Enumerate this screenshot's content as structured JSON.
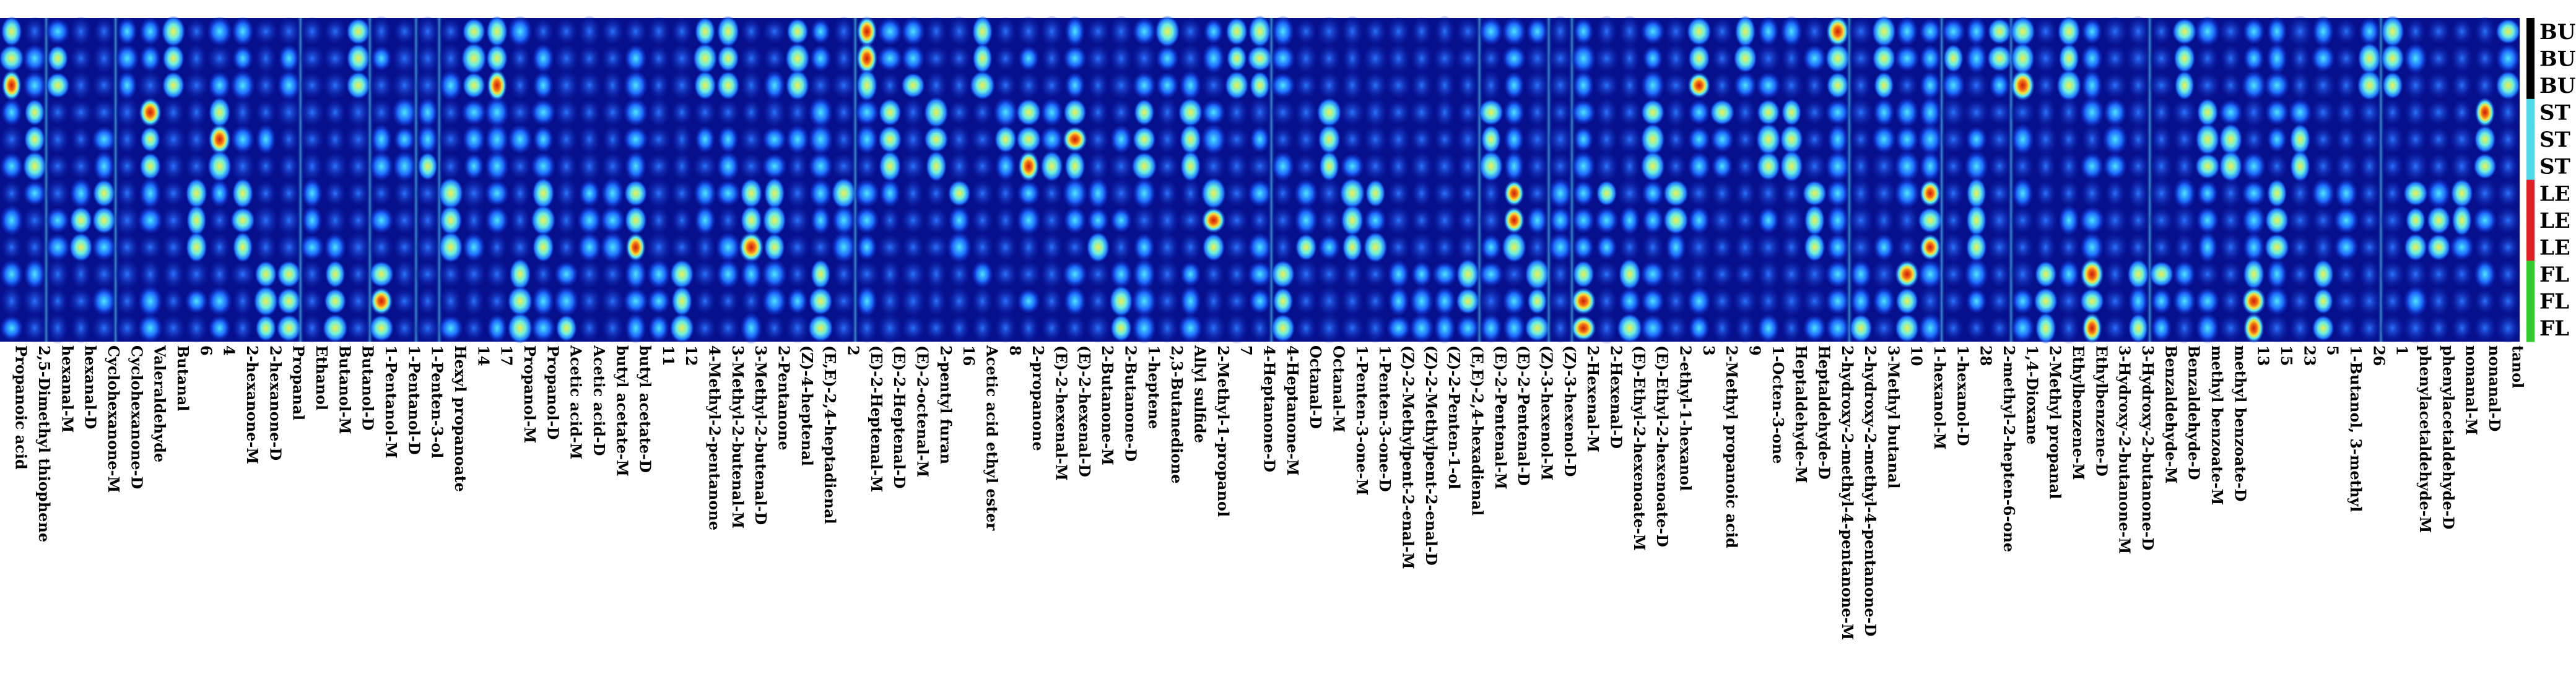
{
  "chart_data": {
    "type": "heatmap",
    "title": "",
    "xlabel": "",
    "ylabel": "",
    "legend": "none",
    "grid": false,
    "colormap": "jet",
    "sample_rows": [
      "BU",
      "BU",
      "BU",
      "ST",
      "ST",
      "ST",
      "LE",
      "LE",
      "LE",
      "FL",
      "FL",
      "FL"
    ],
    "group_colors": {
      "BU": "#000000",
      "ST": "#4fd9ea",
      "LE": "#e01e25",
      "FL": "#33cc2e"
    },
    "compounds": [
      "Propanoic acid",
      "2,5-Dimethyl thiophene",
      "hexanal-M",
      "hexanal-D",
      "Cyclohexanone-M",
      "Cyclohexanone-D",
      "Valeraldehyde",
      "Butanal",
      "6",
      "4",
      "2-hexanone-M",
      "2-hexanone-D",
      "Propanal",
      "Ethanol",
      "Butanol-M",
      "Butanol-D",
      "1-Pentanol-M",
      "1-Pentanol-D",
      "1-Penten-3-ol",
      "Hexyl propanoate",
      "14",
      "17",
      "Propanol-M",
      "Propanol-D",
      "Acetic acid-M",
      "Acetic acid-D",
      "butyl acetate-M",
      "butyl acetate-D",
      "11",
      "12",
      "4-Methyl-2-pentanone",
      "3-Methyl-2-butenal-M",
      "3-Methyl-2-butenal-D",
      "2-Pentanone",
      "(Z)-4-heptenal",
      "(E,E)-2,4-heptadienal",
      "2",
      "(E)-2-Heptenal-M",
      "(E)-2-Heptenal-D",
      "(E)-2-octenal-M",
      "2-pentyl furan",
      "16",
      "Acetic acid ethyl ester",
      "8",
      "2-propanone",
      "(E)-2-hexenal-M",
      "(E)-2-hexenal-D",
      "2-Butanone-M",
      "2-Butanone-D",
      "1-heptene",
      "2,3-Butanedione",
      "Allyl sulfide",
      "2-Methyl-1-propanol",
      "7",
      "4-Heptanone-D",
      "4-Heptanone-M",
      "Octanal-D",
      "Octanal-M",
      "1-Penten-3-one-M",
      "1-Penten-3-one-D",
      "(Z)-2-Methylpent-2-enal-M",
      "(Z)-2-Methylpent-2-enal-D",
      "(Z)-2-Penten-1-ol",
      "(E,E)-2,4-hexadienal",
      "(E)-2-Pentenal-M",
      "(E)-2-Pentenal-D",
      "(Z)-3-hexenol-M",
      "(Z)-3-hexenol-D",
      "2-Hexenal-M",
      "2-Hexenal-D",
      "(E)-Ethyl-2-hexenoate-M",
      "(E)-Ethyl-2-hexenoate-D",
      "2-ethyl-1-hexanol",
      "3",
      "2-Methyl propanoic acid",
      "9",
      "1-Octen-3-one",
      "Heptaldehyde-M",
      "Heptaldehyde-D",
      "2-hydroxy-2-methyl-4-pentanone-M",
      "2-hydroxy-2-methyl-4-pentanone-D",
      "3-Methyl butanal",
      "10",
      "1-hexanol-M",
      "1-hexanol-D",
      "28",
      "2-methyl-2-hepten-6-one",
      "1,4-Dioxane",
      "2-Methyl propanal",
      "Ethylbenzene-M",
      "Ethylbenzene-D",
      "3-Hydroxy-2-butanone-M",
      "3-Hydroxy-2-butanone-D",
      "Benzaldehyde-M",
      "Benzaldehyde-D",
      "methyl benzoate-M",
      "methyl benzoate-D",
      "13",
      "15",
      "23",
      "5",
      "1-Butanol, 3-methyl",
      "26",
      "1",
      "phenylacetaldehyde-M",
      "phenylacetaldehyde-D",
      "nonanal-M",
      "nonanal-D",
      "tanol"
    ]
  }
}
